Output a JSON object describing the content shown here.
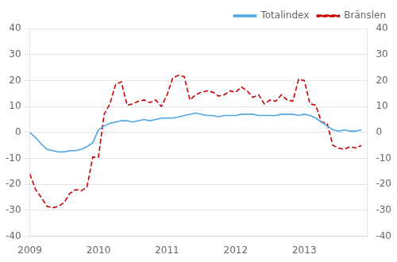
{
  "chart_data": {
    "type": "line",
    "x": [
      2009.0,
      2009.083,
      2009.167,
      2009.25,
      2009.333,
      2009.417,
      2009.5,
      2009.583,
      2009.667,
      2009.75,
      2009.833,
      2009.917,
      2010.0,
      2010.083,
      2010.167,
      2010.25,
      2010.333,
      2010.417,
      2010.5,
      2010.583,
      2010.667,
      2010.75,
      2010.833,
      2010.917,
      2011.0,
      2011.083,
      2011.167,
      2011.25,
      2011.333,
      2011.417,
      2011.5,
      2011.583,
      2011.667,
      2011.75,
      2011.833,
      2011.917,
      2012.0,
      2012.083,
      2012.167,
      2012.25,
      2012.333,
      2012.417,
      2012.5,
      2012.583,
      2012.667,
      2012.75,
      2012.833,
      2012.917,
      2013.0,
      2013.083,
      2013.167,
      2013.25,
      2013.333,
      2013.417,
      2013.5,
      2013.583,
      2013.667,
      2013.75,
      2013.833
    ],
    "series": [
      {
        "name": "Totalindex",
        "color": "#4da6e8",
        "line_style": "solid",
        "values": [
          0.0,
          -2.0,
          -4.5,
          -6.5,
          -7.0,
          -7.5,
          -7.5,
          -7.0,
          -7.0,
          -6.5,
          -5.5,
          -4.0,
          1.0,
          2.5,
          3.5,
          4.0,
          4.5,
          4.5,
          4.0,
          4.5,
          5.0,
          4.5,
          5.0,
          5.5,
          5.5,
          5.5,
          6.0,
          6.5,
          7.0,
          7.5,
          7.0,
          6.5,
          6.5,
          6.0,
          6.5,
          6.5,
          6.5,
          7.0,
          7.0,
          7.0,
          6.5,
          6.5,
          6.5,
          6.5,
          7.0,
          7.0,
          7.0,
          6.5,
          7.0,
          6.5,
          5.5,
          4.0,
          2.5,
          1.0,
          0.5,
          1.0,
          0.5,
          0.5,
          1.0
        ]
      },
      {
        "name": "Bränslen",
        "color": "#cc0000",
        "line_style": "dashed",
        "axis": "y2",
        "values": [
          -16.0,
          -22.0,
          -25.0,
          -28.5,
          -29.0,
          -28.5,
          -27.0,
          -23.5,
          -22.0,
          -22.5,
          -21.0,
          -9.5,
          -9.5,
          7.0,
          11.0,
          18.5,
          19.5,
          10.5,
          11.0,
          12.0,
          12.5,
          11.5,
          12.5,
          10.0,
          14.5,
          21.0,
          22.0,
          21.5,
          12.5,
          14.5,
          15.5,
          16.0,
          15.5,
          14.0,
          14.5,
          16.0,
          15.5,
          17.5,
          16.0,
          13.5,
          14.5,
          11.0,
          12.5,
          12.0,
          14.5,
          12.5,
          12.0,
          20.5,
          20.0,
          11.0,
          10.5,
          4.0,
          3.5,
          -5.0,
          -6.0,
          -6.5,
          -5.5,
          -6.0,
          -5.0
        ]
      }
    ],
    "xlim": [
      2009.0,
      2013.916
    ],
    "xticks": [
      2009,
      2010,
      2011,
      2012,
      2013
    ],
    "ylim": [
      -40,
      40
    ],
    "yticks": [
      -40,
      -30,
      -20,
      -10,
      0,
      10,
      20,
      30,
      40
    ],
    "y2lim": [
      -40,
      40
    ],
    "y2ticks": [
      -40,
      -30,
      -20,
      -10,
      0,
      10,
      20,
      30,
      40
    ],
    "grid": "y",
    "legend": "upper right"
  }
}
